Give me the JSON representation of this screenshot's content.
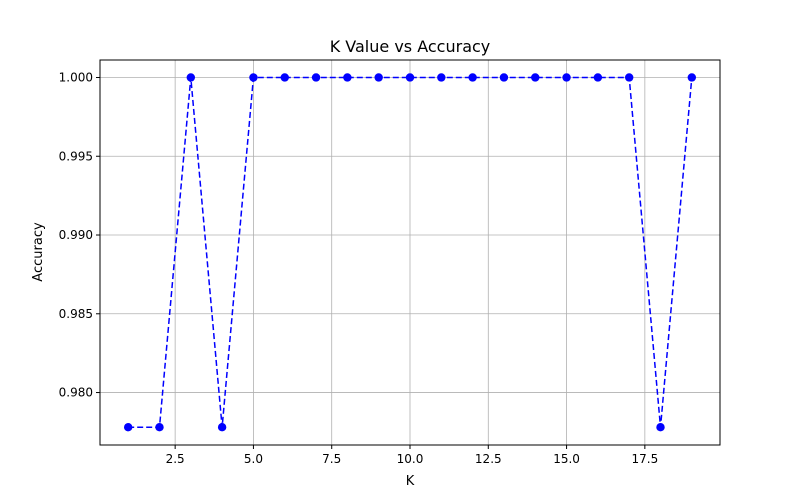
{
  "chart_data": {
    "type": "line",
    "title": "K Value vs Accuracy",
    "xlabel": "K",
    "ylabel": "Accuracy",
    "x": [
      1,
      2,
      3,
      4,
      5,
      6,
      7,
      8,
      9,
      10,
      11,
      12,
      13,
      14,
      15,
      16,
      17,
      18,
      19
    ],
    "series": [
      {
        "values": [
          0.9778,
          0.9778,
          1.0,
          0.9778,
          1.0,
          1.0,
          1.0,
          1.0,
          1.0,
          1.0,
          1.0,
          1.0,
          1.0,
          1.0,
          1.0,
          1.0,
          1.0,
          0.9778,
          1.0
        ],
        "color": "#0000ff",
        "line_style": "dashed",
        "marker": "circle"
      }
    ],
    "xlim": [
      0.1,
      19.9
    ],
    "ylim": [
      0.97667,
      1.00111
    ],
    "x_ticks": [
      2.5,
      5.0,
      7.5,
      10.0,
      12.5,
      15.0,
      17.5
    ],
    "x_tick_labels": [
      "2.5",
      "5.0",
      "7.5",
      "10.0",
      "12.5",
      "15.0",
      "17.5"
    ],
    "y_ticks": [
      0.98,
      0.985,
      0.99,
      0.995,
      1.0
    ],
    "y_tick_labels": [
      "0.980",
      "0.985",
      "0.990",
      "0.995",
      "1.000"
    ],
    "grid": true
  }
}
